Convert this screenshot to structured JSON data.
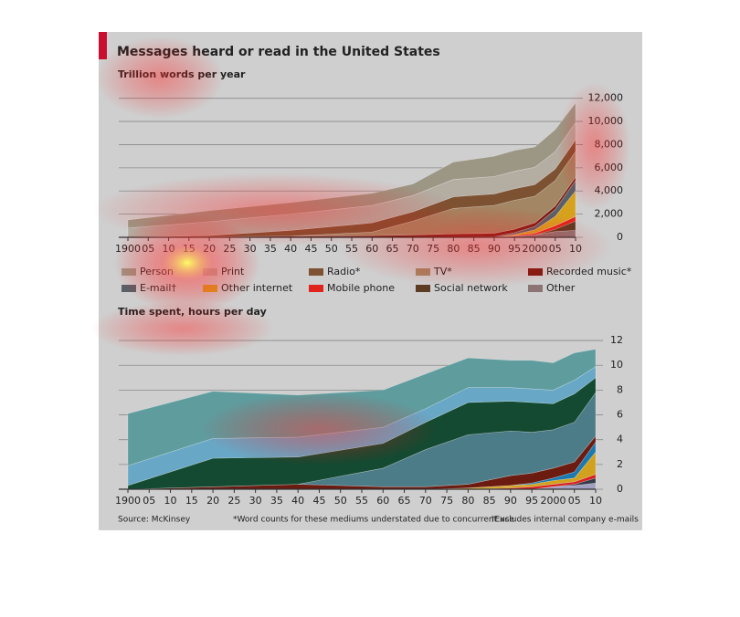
{
  "title": "Messages heard or read in the United States",
  "footer": {
    "source": "Source: McKinsey",
    "note1": "*Word counts for these mediums understated due to concurrent use",
    "note2": "†Excludes internal company e-mails"
  },
  "chart_data": [
    {
      "type": "area",
      "y_label": "Trillion words per year",
      "stacked": true,
      "grid": true,
      "x": [
        1900,
        1920,
        1940,
        1960,
        1970,
        1980,
        1990,
        1995,
        2000,
        2005,
        2010
      ],
      "xlim": [
        1900,
        2010
      ],
      "xticks": [
        1900,
        {
          "value": 1905,
          "label": "05"
        },
        {
          "value": 1910,
          "label": "10"
        },
        {
          "value": 1915,
          "label": "15"
        },
        {
          "value": 1920,
          "label": "20"
        },
        {
          "value": 1925,
          "label": "25"
        },
        {
          "value": 1930,
          "label": "30"
        },
        {
          "value": 1935,
          "label": "35"
        },
        {
          "value": 1940,
          "label": "40"
        },
        {
          "value": 1945,
          "label": "45"
        },
        {
          "value": 1950,
          "label": "50"
        },
        {
          "value": 1955,
          "label": "55"
        },
        {
          "value": 1960,
          "label": "60"
        },
        {
          "value": 1965,
          "label": "65"
        },
        {
          "value": 1970,
          "label": "70"
        },
        {
          "value": 1975,
          "label": "75"
        },
        {
          "value": 1980,
          "label": "80"
        },
        {
          "value": 1985,
          "label": "85"
        },
        {
          "value": 1990,
          "label": "90"
        },
        {
          "value": 1995,
          "label": "95"
        },
        2000,
        {
          "value": 2005,
          "label": "05"
        },
        {
          "value": 2010,
          "label": "10"
        }
      ],
      "ylim": [
        0,
        13000
      ],
      "yticks": [
        0,
        {
          "value": 2000,
          "label": "2,000"
        },
        {
          "value": 4000,
          "label": "4,000"
        },
        {
          "value": 6000,
          "label": "6,000"
        },
        {
          "value": 8000,
          "label": "8,000"
        },
        {
          "value": 10000,
          "label": "10,000"
        },
        {
          "value": 12000,
          "label": "12,000"
        }
      ],
      "series": [
        {
          "name": "Person",
          "color": "#9c9785",
          "values": [
            700,
            950,
            1000,
            1050,
            1000,
            1500,
            1750,
            1800,
            1750,
            1900,
            1700
          ]
        },
        {
          "name": "Print",
          "color": "#b3ada2",
          "values": [
            800,
            1200,
            1400,
            1500,
            1400,
            1500,
            1500,
            1500,
            1500,
            1500,
            1500
          ]
        },
        {
          "name": "Radio*",
          "color": "#7d5232",
          "values": [
            0,
            100,
            500,
            800,
            800,
            1000,
            1000,
            1000,
            1000,
            1000,
            1000
          ]
        },
        {
          "name": "TV*",
          "color": "#a38764",
          "values": [
            0,
            0,
            0,
            300,
            1200,
            2200,
            2400,
            2500,
            2300,
            2200,
            2200
          ]
        },
        {
          "name": "Recorded music*",
          "color": "#7a1c12",
          "values": [
            0,
            50,
            100,
            150,
            200,
            300,
            300,
            300,
            300,
            300,
            300
          ]
        },
        {
          "name": "E-mail†",
          "color": "#5a6068",
          "values": [
            0,
            0,
            0,
            0,
            0,
            0,
            50,
            150,
            300,
            600,
            900
          ]
        },
        {
          "name": "Other internet",
          "color": "#d6a21e",
          "values": [
            0,
            0,
            0,
            0,
            0,
            0,
            0,
            100,
            300,
            800,
            2200
          ]
        },
        {
          "name": "Mobile phone",
          "color": "#e0241c",
          "values": [
            0,
            0,
            0,
            0,
            0,
            0,
            0,
            50,
            150,
            300,
            400
          ]
        },
        {
          "name": "Social network",
          "color": "#5c3c22",
          "values": [
            0,
            0,
            0,
            0,
            0,
            0,
            0,
            0,
            0,
            200,
            800
          ]
        },
        {
          "name": "Other",
          "color": "#8c7474",
          "values": [
            0,
            0,
            0,
            0,
            0,
            0,
            0,
            100,
            200,
            500,
            600
          ]
        }
      ]
    },
    {
      "type": "area",
      "y_label": "Time spent, hours per day",
      "stacked": true,
      "grid": true,
      "x": [
        1900,
        1920,
        1940,
        1960,
        1970,
        1980,
        1990,
        1995,
        2000,
        2005,
        2010
      ],
      "xlim": [
        1900,
        2010
      ],
      "xticks": [
        1900,
        {
          "value": 1905,
          "label": "05"
        },
        {
          "value": 1910,
          "label": "10"
        },
        {
          "value": 1915,
          "label": "15"
        },
        {
          "value": 1920,
          "label": "20"
        },
        {
          "value": 1925,
          "label": "25"
        },
        {
          "value": 1930,
          "label": "30"
        },
        {
          "value": 1935,
          "label": "35"
        },
        {
          "value": 1940,
          "label": "40"
        },
        {
          "value": 1945,
          "label": "45"
        },
        {
          "value": 1950,
          "label": "50"
        },
        {
          "value": 1955,
          "label": "55"
        },
        {
          "value": 1960,
          "label": "60"
        },
        {
          "value": 1965,
          "label": "65"
        },
        {
          "value": 1970,
          "label": "70"
        },
        {
          "value": 1975,
          "label": "75"
        },
        {
          "value": 1980,
          "label": "80"
        },
        {
          "value": 1985,
          "label": "85"
        },
        {
          "value": 1990,
          "label": "90"
        },
        {
          "value": 1995,
          "label": "95"
        },
        2000,
        {
          "value": 2005,
          "label": "05"
        },
        {
          "value": 2010,
          "label": "10"
        }
      ],
      "ylim": [
        0,
        13
      ],
      "yticks": [
        0,
        2,
        4,
        6,
        8,
        10,
        12
      ],
      "series": [
        {
          "color": "#5f9c9e",
          "values": [
            4.2,
            3.8,
            3.4,
            3.0,
            2.8,
            2.4,
            2.2,
            2.3,
            2.2,
            2.2,
            1.4
          ]
        },
        {
          "color": "#68a8c6",
          "values": [
            1.6,
            1.6,
            1.6,
            1.3,
            1.1,
            1.2,
            1.1,
            1.1,
            1.1,
            1.1,
            0.9
          ]
        },
        {
          "color": "#134a31",
          "values": [
            0.3,
            2.3,
            2.2,
            2.0,
            2.2,
            2.6,
            2.4,
            2.4,
            2.1,
            2.3,
            1.2
          ]
        },
        {
          "color": "#4d7c89",
          "values": [
            0,
            0,
            0,
            1.5,
            3.0,
            4.0,
            3.6,
            3.3,
            3.1,
            3.2,
            3.5
          ]
        },
        {
          "color": "#6b1b10",
          "values": [
            0,
            0.2,
            0.4,
            0.2,
            0.2,
            0.3,
            0.8,
            0.8,
            0.8,
            0.8,
            0.5
          ]
        },
        {
          "color": "#1a79b0",
          "values": [
            0,
            0,
            0,
            0,
            0,
            0,
            0,
            0.1,
            0.2,
            0.5,
            0.8
          ]
        },
        {
          "color": "#d2a21e",
          "values": [
            0,
            0,
            0,
            0,
            0,
            0.1,
            0.2,
            0.2,
            0.3,
            0.3,
            1.8
          ]
        },
        {
          "color": "#d82020",
          "values": [
            0,
            0,
            0,
            0,
            0,
            0,
            0.1,
            0.2,
            0.2,
            0.2,
            0.3
          ]
        },
        {
          "color": "#333a48",
          "values": [
            0,
            0,
            0,
            0,
            0,
            0,
            0,
            0,
            0,
            0.1,
            0.4
          ]
        },
        {
          "color": "#a2a0c2",
          "values": [
            0,
            0,
            0,
            0,
            0,
            0,
            0,
            0,
            0.2,
            0.3,
            0.5
          ]
        }
      ]
    }
  ]
}
